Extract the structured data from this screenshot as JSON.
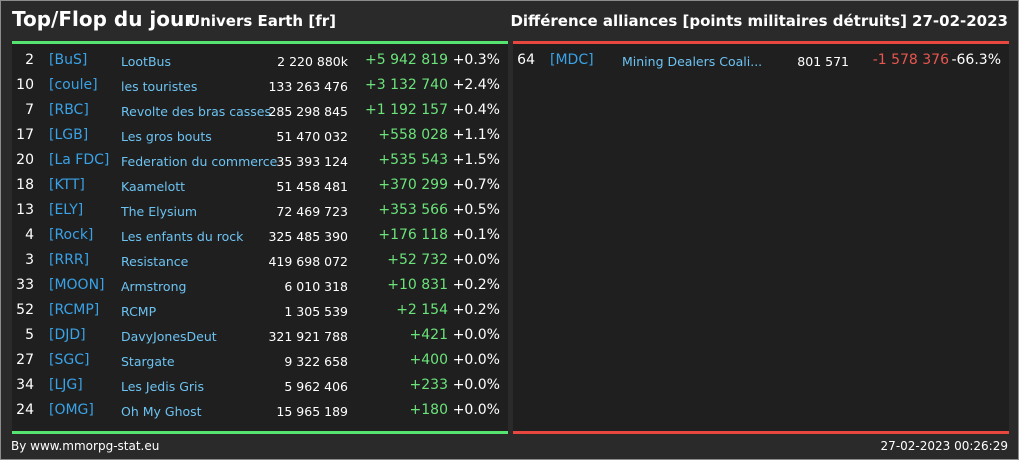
{
  "header": {
    "title": "Top/Flop du jour",
    "universe": "Univers Earth [fr]",
    "subtitle": "Différence alliances [points militaires détruits]",
    "date": "27-02-2023"
  },
  "colors": {
    "positive": "#6be37a",
    "negative": "#e8564f",
    "tag": "#3aa2e6",
    "name": "#6cc3f2"
  },
  "top": [
    {
      "rank": "2",
      "tag": "[BuS]",
      "name": "LootBus",
      "points": "2 220 880k",
      "diff": "+5 942 819",
      "pct": "+0.3%"
    },
    {
      "rank": "10",
      "tag": "[coule]",
      "name": "les touristes",
      "points": "133 263 476",
      "diff": "+3 132 740",
      "pct": "+2.4%"
    },
    {
      "rank": "7",
      "tag": "[RBC]",
      "name": "Revolte des bras casses",
      "points": "285 298 845",
      "diff": "+1 192 157",
      "pct": "+0.4%"
    },
    {
      "rank": "17",
      "tag": "[LGB]",
      "name": "Les gros bouts",
      "points": "51 470 032",
      "diff": "+558 028",
      "pct": "+1.1%"
    },
    {
      "rank": "20",
      "tag": "[La FDC]",
      "name": "Federation du commerce",
      "points": "35 393 124",
      "diff": "+535 543",
      "pct": "+1.5%"
    },
    {
      "rank": "18",
      "tag": "[KTT]",
      "name": "Kaamelott",
      "points": "51 458 481",
      "diff": "+370 299",
      "pct": "+0.7%"
    },
    {
      "rank": "13",
      "tag": "[ELY]",
      "name": "The Elysium",
      "points": "72 469 723",
      "diff": "+353 566",
      "pct": "+0.5%"
    },
    {
      "rank": "4",
      "tag": "[Rock]",
      "name": "Les enfants du rock",
      "points": "325 485 390",
      "diff": "+176 118",
      "pct": "+0.1%"
    },
    {
      "rank": "3",
      "tag": "[RRR]",
      "name": "Resistance",
      "points": "419 698 072",
      "diff": "+52 732",
      "pct": "+0.0%"
    },
    {
      "rank": "33",
      "tag": "[MOON]",
      "name": "Armstrong",
      "points": "6 010 318",
      "diff": "+10 831",
      "pct": "+0.2%"
    },
    {
      "rank": "52",
      "tag": "[RCMP]",
      "name": "RCMP",
      "points": "1 305 539",
      "diff": "+2 154",
      "pct": "+0.2%"
    },
    {
      "rank": "5",
      "tag": "[DJD]",
      "name": "DavyJonesDeut",
      "points": "321 921 788",
      "diff": "+421",
      "pct": "+0.0%"
    },
    {
      "rank": "27",
      "tag": "[SGC]",
      "name": "Stargate",
      "points": "9 322 658",
      "diff": "+400",
      "pct": "+0.0%"
    },
    {
      "rank": "34",
      "tag": "[LJG]",
      "name": "Les Jedis Gris",
      "points": "5 962 406",
      "diff": "+233",
      "pct": "+0.0%"
    },
    {
      "rank": "24",
      "tag": "[OMG]",
      "name": "Oh My Ghost",
      "points": "15 965 189",
      "diff": "+180",
      "pct": "+0.0%"
    }
  ],
  "flop": [
    {
      "rank": "64",
      "tag": "[MDC]",
      "name": "Mining Dealers Coali...",
      "points": "801 571",
      "diff": "-1 578 376",
      "pct": "-66.3%"
    }
  ],
  "footer": {
    "credit": "By www.mmorpg-stat.eu",
    "timestamp": "27-02-2023 00:26:29"
  }
}
